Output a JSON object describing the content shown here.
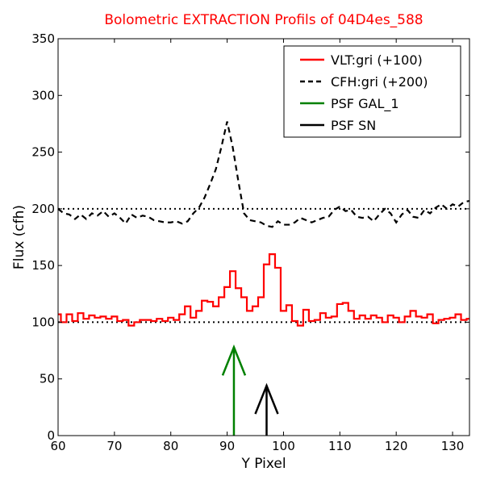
{
  "chart_data": {
    "type": "line",
    "title": "Bolometric EXTRACTION Profils of 04D4es_588",
    "title_color": "#ff0000",
    "xlabel": "Y Pixel",
    "ylabel": "Flux (cfh)",
    "xlim": [
      60,
      133
    ],
    "ylim": [
      0,
      350
    ],
    "xticks": [
      60,
      70,
      80,
      90,
      100,
      110,
      120,
      130
    ],
    "yticks": [
      0,
      50,
      100,
      150,
      200,
      250,
      300,
      350
    ],
    "grid": false,
    "legend_position": "top-right",
    "series": [
      {
        "name": "VLT:gri (+100)",
        "color": "#ff0000",
        "style": "steps",
        "x": [
          60,
          61,
          62,
          63,
          64,
          65,
          66,
          67,
          68,
          69,
          70,
          71,
          72,
          73,
          74,
          75,
          76,
          77,
          78,
          79,
          80,
          81,
          82,
          83,
          84,
          85,
          86,
          87,
          88,
          89,
          90,
          91,
          92,
          93,
          94,
          95,
          96,
          97,
          98,
          99,
          100,
          101,
          102,
          103,
          104,
          105,
          106,
          107,
          108,
          109,
          110,
          111,
          112,
          113,
          114,
          115,
          116,
          117,
          118,
          119,
          120,
          121,
          122,
          123,
          124,
          125,
          126,
          127,
          128,
          129,
          130,
          131,
          132,
          133
        ],
        "y": [
          107,
          100,
          107,
          101,
          108,
          103,
          106,
          104,
          105,
          103,
          105,
          101,
          102,
          97,
          100,
          102,
          102,
          101,
          103,
          101,
          104,
          102,
          107,
          114,
          104,
          110,
          119,
          118,
          114,
          122,
          131,
          145,
          130,
          122,
          110,
          114,
          122,
          151,
          160,
          148,
          110,
          115,
          101,
          97,
          111,
          101,
          102,
          108,
          104,
          105,
          116,
          117,
          110,
          103,
          106,
          103,
          106,
          104,
          100,
          106,
          104,
          100,
          105,
          110,
          105,
          104,
          107,
          99,
          102,
          103,
          104,
          107,
          102,
          103
        ]
      },
      {
        "name": "CFH:gri (+200)",
        "color": "#000000",
        "style": "dashed",
        "x": [
          60,
          61,
          62,
          63,
          64,
          65,
          66,
          67,
          68,
          69,
          70,
          71,
          72,
          73,
          74,
          75,
          76,
          77,
          78,
          79,
          80,
          81,
          82,
          83,
          84,
          85,
          86,
          87,
          88,
          89,
          90,
          91,
          92,
          93,
          94,
          95,
          96,
          97,
          98,
          99,
          100,
          101,
          102,
          103,
          104,
          105,
          106,
          107,
          108,
          109,
          110,
          111,
          112,
          113,
          114,
          115,
          116,
          117,
          118,
          119,
          120,
          121,
          122,
          123,
          124,
          125,
          126,
          127,
          128,
          129,
          130,
          131,
          132,
          133
        ],
        "y": [
          200,
          196,
          195,
          191,
          195,
          191,
          196,
          194,
          198,
          193,
          196,
          192,
          187,
          195,
          192,
          194,
          193,
          190,
          189,
          188,
          188,
          189,
          187,
          189,
          196,
          201,
          210,
          222,
          235,
          255,
          277,
          254,
          224,
          196,
          190,
          189,
          188,
          185,
          184,
          189,
          186,
          186,
          188,
          192,
          190,
          188,
          190,
          192,
          193,
          199,
          202,
          198,
          199,
          193,
          192,
          193,
          189,
          195,
          200,
          196,
          188,
          195,
          199,
          193,
          192,
          199,
          196,
          201,
          204,
          200,
          204,
          202,
          206,
          207
        ]
      }
    ],
    "baselines": [
      {
        "y": 100,
        "style": "dotted",
        "color": "#000000"
      },
      {
        "y": 200,
        "style": "dotted",
        "color": "#000000"
      }
    ],
    "markers": [
      {
        "name": "PSF GAL_1",
        "color": "#008000",
        "x": 91.2,
        "y_base": 0,
        "y_tip": 78
      },
      {
        "name": "PSF SN",
        "color": "#000000",
        "x": 97,
        "y_base": 0,
        "y_tip": 44
      }
    ],
    "legend": [
      {
        "label": "VLT:gri (+100)",
        "color": "#ff0000",
        "style": "solid"
      },
      {
        "label": "CFH:gri (+200)",
        "color": "#000000",
        "style": "dashed"
      },
      {
        "label": "PSF GAL_1",
        "color": "#008000",
        "style": "solid"
      },
      {
        "label": "PSF SN",
        "color": "#000000",
        "style": "solid"
      }
    ]
  }
}
